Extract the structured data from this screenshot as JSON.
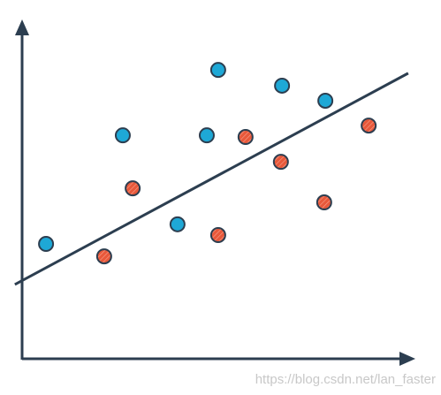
{
  "chart_data": {
    "type": "scatter",
    "xlim": [
      0,
      100
    ],
    "ylim": [
      0,
      100
    ],
    "series": [
      {
        "color": "#1ea8d6",
        "x": [
          6.3,
          26.5,
          51.6,
          48.6,
          40.9,
          68.4,
          79.8
        ],
        "values": [
          35.4,
          68.6,
          88.6,
          68.6,
          41.4,
          83.8,
          79.2
        ]
      },
      {
        "color": "#e8583a",
        "x": [
          21.6,
          29.1,
          58.8,
          51.6,
          68.1,
          79.5,
          91.2
        ],
        "values": [
          31.6,
          52.4,
          68.1,
          38.1,
          60.5,
          48.1,
          71.6
        ]
      }
    ],
    "line": {
      "color": "#2c3e50",
      "x": [
        -1.9,
        101.6
      ],
      "values": [
        23.0,
        87.6
      ]
    }
  },
  "watermark": "https://blog.csdn.net/lan_faster"
}
